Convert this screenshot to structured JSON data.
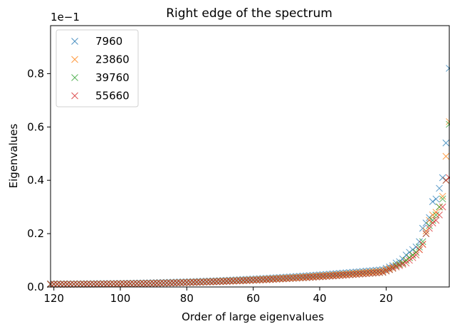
{
  "chart_data": {
    "type": "scatter",
    "title": "Right edge of the spectrum",
    "xlabel": "Order of large eigenvalues",
    "ylabel": "Eigenvalues",
    "y_multiplier_label": "1e−1",
    "x_inverted": true,
    "xlim": [
      121,
      1
    ],
    "ylim": [
      0,
      0.98
    ],
    "x_ticks": [
      120,
      100,
      80,
      60,
      40,
      20
    ],
    "y_ticks": [
      0.0,
      0.2,
      0.4,
      0.6,
      0.8
    ],
    "x_tick_labels": [
      "120",
      "100",
      "80",
      "60",
      "40",
      "20"
    ],
    "y_tick_labels": [
      "0.0",
      "0.2",
      "0.4",
      "0.6",
      "0.8"
    ],
    "marker": "x",
    "grid": false,
    "legend_position": "top-left",
    "series": [
      {
        "name": "7960",
        "color": "#1f77b4",
        "top_values": [
          0.82,
          0.54,
          0.41,
          0.37,
          0.33,
          0.32,
          0.26,
          0.24,
          0.22,
          0.17,
          0.15,
          0.14,
          0.13,
          0.12,
          0.105,
          0.095,
          0.09,
          0.08,
          0.075,
          0.07
        ]
      },
      {
        "name": "23860",
        "color": "#ff7f0e",
        "top_values": [
          0.62,
          0.49,
          0.34,
          0.3,
          0.28,
          0.27,
          0.25,
          0.21,
          0.16,
          0.14,
          0.13,
          0.12,
          0.11,
          0.1,
          0.09,
          0.085,
          0.08,
          0.075,
          0.07,
          0.065
        ]
      },
      {
        "name": "39760",
        "color": "#2ca02c",
        "top_values": [
          0.61,
          0.4,
          0.33,
          0.3,
          0.27,
          0.25,
          0.23,
          0.2,
          0.17,
          0.15,
          0.13,
          0.12,
          0.11,
          0.1,
          0.09,
          0.085,
          0.08,
          0.07,
          0.065,
          0.06
        ]
      },
      {
        "name": "55660",
        "color": "#d62728",
        "top_values": [
          0.41,
          0.4,
          0.3,
          0.27,
          0.25,
          0.24,
          0.22,
          0.2,
          0.16,
          0.14,
          0.12,
          0.11,
          0.1,
          0.09,
          0.085,
          0.08,
          0.075,
          0.07,
          0.065,
          0.06
        ]
      }
    ],
    "tail": {
      "from_order": 21,
      "to_order": 121,
      "values_at_order_21": [
        0.065,
        0.06,
        0.055,
        0.055
      ],
      "values_at_order_121": [
        0.012,
        0.011,
        0.01,
        0.01
      ]
    }
  }
}
